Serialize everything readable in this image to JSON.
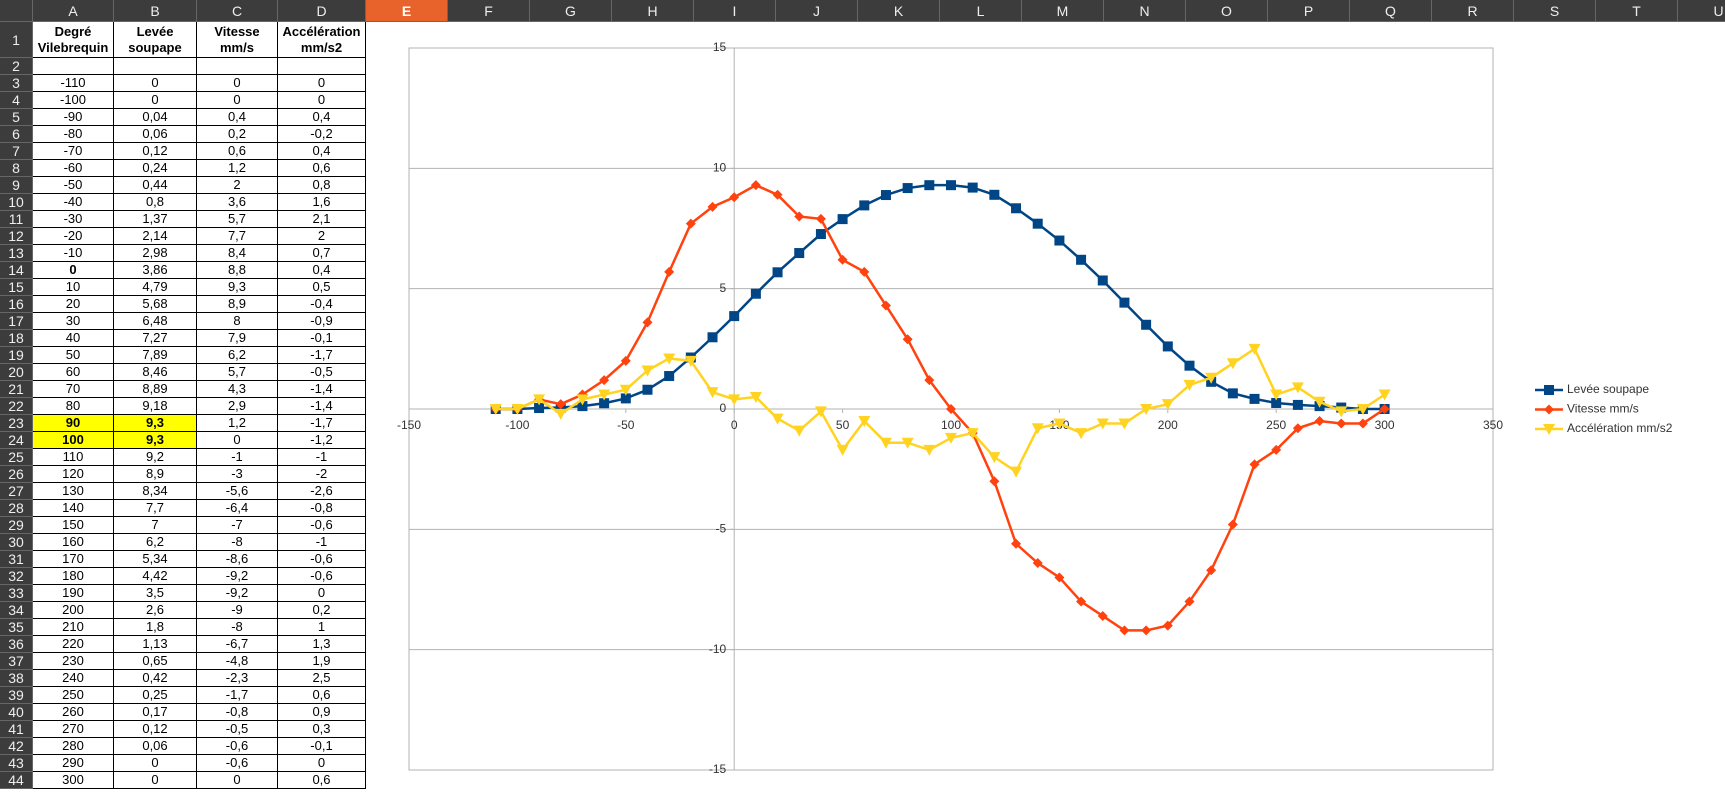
{
  "spreadsheet": {
    "columns": [
      "A",
      "B",
      "C",
      "D",
      "E",
      "F",
      "G",
      "H",
      "I",
      "J",
      "K",
      "L",
      "M",
      "N",
      "O",
      "P",
      "Q",
      "R",
      "S",
      "T",
      "U"
    ],
    "row_numbers": [
      1,
      2,
      3,
      4,
      5,
      6,
      7,
      8,
      9,
      10,
      11,
      12,
      13,
      14,
      15,
      16,
      17,
      18,
      19,
      20,
      21,
      22,
      23,
      24,
      25,
      26,
      27,
      28,
      29,
      30,
      31,
      32,
      33,
      34,
      35,
      36,
      37,
      38,
      39,
      40,
      41,
      42,
      43,
      44
    ]
  },
  "table": {
    "header": [
      "Degré\nVilebrequin",
      "Levée\nsoupape",
      "Vitesse\nmm/s",
      "Accélération\nmm/s2"
    ],
    "rows": [
      [
        "-110",
        "0",
        "0",
        "0"
      ],
      [
        "-100",
        "0",
        "0",
        "0"
      ],
      [
        "-90",
        "0,04",
        "0,4",
        "0,4"
      ],
      [
        "-80",
        "0,06",
        "0,2",
        "-0,2"
      ],
      [
        "-70",
        "0,12",
        "0,6",
        "0,4"
      ],
      [
        "-60",
        "0,24",
        "1,2",
        "0,6"
      ],
      [
        "-50",
        "0,44",
        "2",
        "0,8"
      ],
      [
        "-40",
        "0,8",
        "3,6",
        "1,6"
      ],
      [
        "-30",
        "1,37",
        "5,7",
        "2,1"
      ],
      [
        "-20",
        "2,14",
        "7,7",
        "2"
      ],
      [
        "-10",
        "2,98",
        "8,4",
        "0,7"
      ],
      [
        "0",
        "3,86",
        "8,8",
        "0,4"
      ],
      [
        "10",
        "4,79",
        "9,3",
        "0,5"
      ],
      [
        "20",
        "5,68",
        "8,9",
        "-0,4"
      ],
      [
        "30",
        "6,48",
        "8",
        "-0,9"
      ],
      [
        "40",
        "7,27",
        "7,9",
        "-0,1"
      ],
      [
        "50",
        "7,89",
        "6,2",
        "-1,7"
      ],
      [
        "60",
        "8,46",
        "5,7",
        "-0,5"
      ],
      [
        "70",
        "8,89",
        "4,3",
        "-1,4"
      ],
      [
        "80",
        "9,18",
        "2,9",
        "-1,4"
      ],
      [
        "90",
        "9,3",
        "1,2",
        "-1,7"
      ],
      [
        "100",
        "9,3",
        "0",
        "-1,2"
      ],
      [
        "110",
        "9,2",
        "-1",
        "-1"
      ],
      [
        "120",
        "8,9",
        "-3",
        "-2"
      ],
      [
        "130",
        "8,34",
        "-5,6",
        "-2,6"
      ],
      [
        "140",
        "7,7",
        "-6,4",
        "-0,8"
      ],
      [
        "150",
        "7",
        "-7",
        "-0,6"
      ],
      [
        "160",
        "6,2",
        "-8",
        "-1"
      ],
      [
        "170",
        "5,34",
        "-8,6",
        "-0,6"
      ],
      [
        "180",
        "4,42",
        "-9,2",
        "-0,6"
      ],
      [
        "190",
        "3,5",
        "-9,2",
        "0"
      ],
      [
        "200",
        "2,6",
        "-9",
        "0,2"
      ],
      [
        "210",
        "1,8",
        "-8",
        "1"
      ],
      [
        "220",
        "1,13",
        "-6,7",
        "1,3"
      ],
      [
        "230",
        "0,65",
        "-4,8",
        "1,9"
      ],
      [
        "240",
        "0,42",
        "-2,3",
        "2,5"
      ],
      [
        "250",
        "0,25",
        "-1,7",
        "0,6"
      ],
      [
        "260",
        "0,17",
        "-0,8",
        "0,9"
      ],
      [
        "270",
        "0,12",
        "-0,5",
        "0,3"
      ],
      [
        "280",
        "0,06",
        "-0,6",
        "-0,1"
      ],
      [
        "290",
        "0",
        "-0,6",
        "0"
      ],
      [
        "300",
        "0",
        "0",
        "0,6"
      ]
    ]
  },
  "chart_data": {
    "type": "line",
    "x": [
      -110,
      -100,
      -90,
      -80,
      -70,
      -60,
      -50,
      -40,
      -30,
      -20,
      -10,
      0,
      10,
      20,
      30,
      40,
      50,
      60,
      70,
      80,
      90,
      100,
      110,
      120,
      130,
      140,
      150,
      160,
      170,
      180,
      190,
      200,
      210,
      220,
      230,
      240,
      250,
      260,
      270,
      280,
      290,
      300
    ],
    "series": [
      {
        "name": "Levée soupape",
        "color": "#004586",
        "marker": "square",
        "values": [
          0,
          0,
          0.04,
          0.06,
          0.12,
          0.24,
          0.44,
          0.8,
          1.37,
          2.14,
          2.98,
          3.86,
          4.79,
          5.68,
          6.48,
          7.27,
          7.89,
          8.46,
          8.89,
          9.18,
          9.3,
          9.3,
          9.2,
          8.9,
          8.34,
          7.7,
          7,
          6.2,
          5.34,
          4.42,
          3.5,
          2.6,
          1.8,
          1.13,
          0.65,
          0.42,
          0.25,
          0.17,
          0.12,
          0.06,
          0,
          0
        ]
      },
      {
        "name": "Vitesse mm/s",
        "color": "#ff420e",
        "marker": "diamond",
        "values": [
          0,
          0,
          0.4,
          0.2,
          0.6,
          1.2,
          2,
          3.6,
          5.7,
          7.7,
          8.4,
          8.8,
          9.3,
          8.9,
          8,
          7.9,
          6.2,
          5.7,
          4.3,
          2.9,
          1.2,
          0,
          -1,
          -3,
          -5.6,
          -6.4,
          -7,
          -8,
          -8.6,
          -9.2,
          -9.2,
          -9,
          -8,
          -6.7,
          -4.8,
          -2.3,
          -1.7,
          -0.8,
          -0.5,
          -0.6,
          -0.6,
          0
        ]
      },
      {
        "name": "Accélération mm/s2",
        "color": "#ffd320",
        "marker": "triangle",
        "values": [
          0,
          0,
          0.4,
          -0.2,
          0.4,
          0.6,
          0.8,
          1.6,
          2.1,
          2,
          0.7,
          0.4,
          0.5,
          -0.4,
          -0.9,
          -0.1,
          -1.7,
          -0.5,
          -1.4,
          -1.4,
          -1.7,
          -1.2,
          -1,
          -2,
          -2.6,
          -0.8,
          -0.6,
          -1,
          -0.6,
          -0.6,
          0,
          0.2,
          1,
          1.3,
          1.9,
          2.5,
          0.6,
          0.9,
          0.3,
          -0.1,
          0,
          0.6
        ]
      }
    ],
    "xlim": [
      -150,
      350
    ],
    "xticks": [
      -150,
      -100,
      -50,
      0,
      50,
      100,
      150,
      200,
      250,
      300,
      350
    ],
    "ylim": [
      -15,
      15
    ],
    "yticks": [
      -15,
      -10,
      -5,
      0,
      5,
      10,
      15
    ],
    "grid": true,
    "legend": "right"
  }
}
